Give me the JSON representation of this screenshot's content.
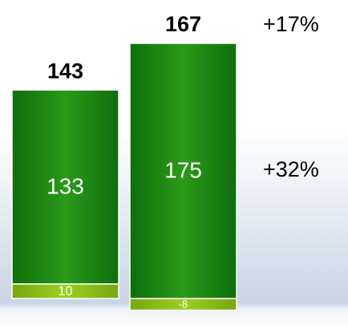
{
  "chart_data": {
    "type": "stacked-bar",
    "series": [
      {
        "color": "#8cc21a",
        "values": [
          10,
          -8
        ]
      },
      {
        "color": "#1e8a12",
        "values": [
          133,
          175
        ]
      }
    ],
    "totals": [
      143,
      167
    ],
    "annotations": [
      "+17%",
      "+32%"
    ]
  }
}
